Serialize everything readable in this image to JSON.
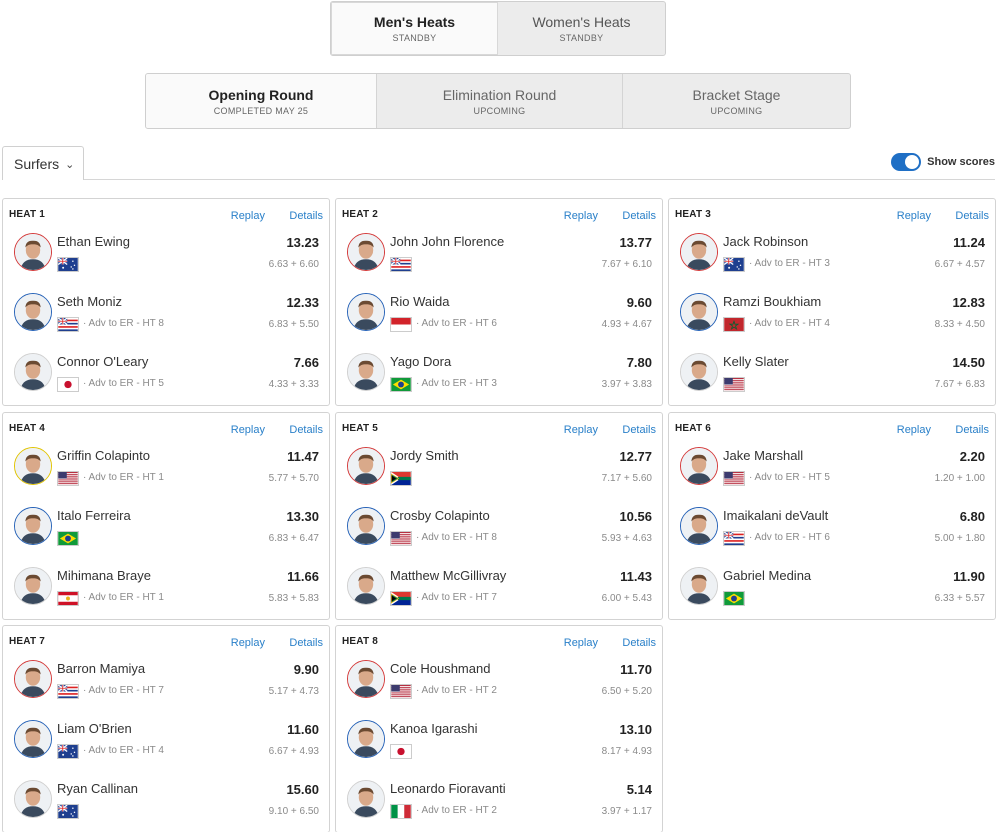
{
  "gender_tabs": [
    {
      "label": "Men's Heats",
      "status": "STANDBY",
      "active": true
    },
    {
      "label": "Women's Heats",
      "status": "STANDBY",
      "active": false
    }
  ],
  "round_tabs": [
    {
      "label": "Opening Round",
      "status": "COMPLETED MAY 25",
      "active": true
    },
    {
      "label": "Elimination Round",
      "status": "UPCOMING",
      "active": false
    },
    {
      "label": "Bracket Stage",
      "status": "UPCOMING",
      "active": false
    }
  ],
  "toolbar": {
    "surfers_label": "Surfers",
    "show_scores_label": "Show scores",
    "show_scores_on": true
  },
  "heat_links": {
    "replay": "Replay",
    "details": "Details"
  },
  "colors": {
    "accent": "#1f6fc5",
    "link": "#2a80c9",
    "red": "#d43b3b",
    "blue": "#2763b8",
    "yellow": "#e1c400"
  },
  "heats": [
    {
      "title": "HEAT 1",
      "surfers": [
        {
          "name": "Ethan Ewing",
          "flag": "AUS",
          "jersey": "red",
          "adv": "",
          "score": "13.23",
          "waves": "6.63 + 6.60"
        },
        {
          "name": "Seth Moniz",
          "flag": "HAW",
          "jersey": "blue",
          "adv": "· Adv to ER - HT 8",
          "score": "12.33",
          "waves": "6.83 + 5.50"
        },
        {
          "name": "Connor O'Leary",
          "flag": "JPN",
          "jersey": "white",
          "adv": "· Adv to ER - HT 5",
          "score": "7.66",
          "waves": "4.33 + 3.33"
        }
      ]
    },
    {
      "title": "HEAT 2",
      "surfers": [
        {
          "name": "John John Florence",
          "flag": "HAW",
          "jersey": "red",
          "adv": "",
          "score": "13.77",
          "waves": "7.67 + 6.10"
        },
        {
          "name": "Rio Waida",
          "flag": "INA",
          "jersey": "blue",
          "adv": "· Adv to ER - HT 6",
          "score": "9.60",
          "waves": "4.93 + 4.67"
        },
        {
          "name": "Yago Dora",
          "flag": "BRA",
          "jersey": "white",
          "adv": "· Adv to ER - HT 3",
          "score": "7.80",
          "waves": "3.97 + 3.83"
        }
      ]
    },
    {
      "title": "HEAT 3",
      "surfers": [
        {
          "name": "Jack Robinson",
          "flag": "AUS",
          "jersey": "red",
          "adv": "· Adv to ER - HT 3",
          "score": "11.24",
          "waves": "6.67 + 4.57"
        },
        {
          "name": "Ramzi Boukhiam",
          "flag": "MAR",
          "jersey": "blue",
          "adv": "· Adv to ER - HT 4",
          "score": "12.83",
          "waves": "8.33 + 4.50"
        },
        {
          "name": "Kelly Slater",
          "flag": "USA",
          "jersey": "white",
          "adv": "",
          "score": "14.50",
          "waves": "7.67 + 6.83"
        }
      ]
    },
    {
      "title": "HEAT 4",
      "surfers": [
        {
          "name": "Griffin Colapinto",
          "flag": "USA",
          "jersey": "yellow",
          "adv": "· Adv to ER - HT 1",
          "score": "11.47",
          "waves": "5.77 + 5.70"
        },
        {
          "name": "Italo Ferreira",
          "flag": "BRA",
          "jersey": "blue",
          "adv": "",
          "score": "13.30",
          "waves": "6.83 + 6.47"
        },
        {
          "name": "Mihimana Braye",
          "flag": "PYF",
          "jersey": "white",
          "adv": "· Adv to ER - HT 1",
          "score": "11.66",
          "waves": "5.83 + 5.83"
        }
      ]
    },
    {
      "title": "HEAT 5",
      "surfers": [
        {
          "name": "Jordy Smith",
          "flag": "RSA",
          "jersey": "red",
          "adv": "",
          "score": "12.77",
          "waves": "7.17 + 5.60"
        },
        {
          "name": "Crosby Colapinto",
          "flag": "USA",
          "jersey": "blue",
          "adv": "· Adv to ER - HT 8",
          "score": "10.56",
          "waves": "5.93 + 4.63"
        },
        {
          "name": "Matthew McGillivray",
          "flag": "RSA",
          "jersey": "white",
          "adv": "· Adv to ER - HT 7",
          "score": "11.43",
          "waves": "6.00 + 5.43"
        }
      ]
    },
    {
      "title": "HEAT 6",
      "surfers": [
        {
          "name": "Jake Marshall",
          "flag": "USA",
          "jersey": "red",
          "adv": "· Adv to ER - HT 5",
          "score": "2.20",
          "waves": "1.20 + 1.00"
        },
        {
          "name": "Imaikalani deVault",
          "flag": "HAW",
          "jersey": "blue",
          "adv": "· Adv to ER - HT 6",
          "score": "6.80",
          "waves": "5.00 + 1.80"
        },
        {
          "name": "Gabriel Medina",
          "flag": "BRA",
          "jersey": "white",
          "adv": "",
          "score": "11.90",
          "waves": "6.33 + 5.57"
        }
      ]
    },
    {
      "title": "HEAT 7",
      "surfers": [
        {
          "name": "Barron Mamiya",
          "flag": "HAW",
          "jersey": "red",
          "adv": "· Adv to ER - HT 7",
          "score": "9.90",
          "waves": "5.17 + 4.73"
        },
        {
          "name": "Liam O'Brien",
          "flag": "AUS",
          "jersey": "blue",
          "adv": "· Adv to ER - HT 4",
          "score": "11.60",
          "waves": "6.67 + 4.93"
        },
        {
          "name": "Ryan Callinan",
          "flag": "AUS",
          "jersey": "white",
          "adv": "",
          "score": "15.60",
          "waves": "9.10 + 6.50"
        }
      ]
    },
    {
      "title": "HEAT 8",
      "surfers": [
        {
          "name": "Cole Houshmand",
          "flag": "USA",
          "jersey": "red",
          "adv": "· Adv to ER - HT 2",
          "score": "11.70",
          "waves": "6.50 + 5.20"
        },
        {
          "name": "Kanoa Igarashi",
          "flag": "JPN",
          "jersey": "blue",
          "adv": "",
          "score": "13.10",
          "waves": "8.17 + 4.93"
        },
        {
          "name": "Leonardo Fioravanti",
          "flag": "ITA",
          "jersey": "white",
          "adv": "· Adv to ER - HT 2",
          "score": "5.14",
          "waves": "3.97 + 1.17"
        }
      ]
    }
  ]
}
